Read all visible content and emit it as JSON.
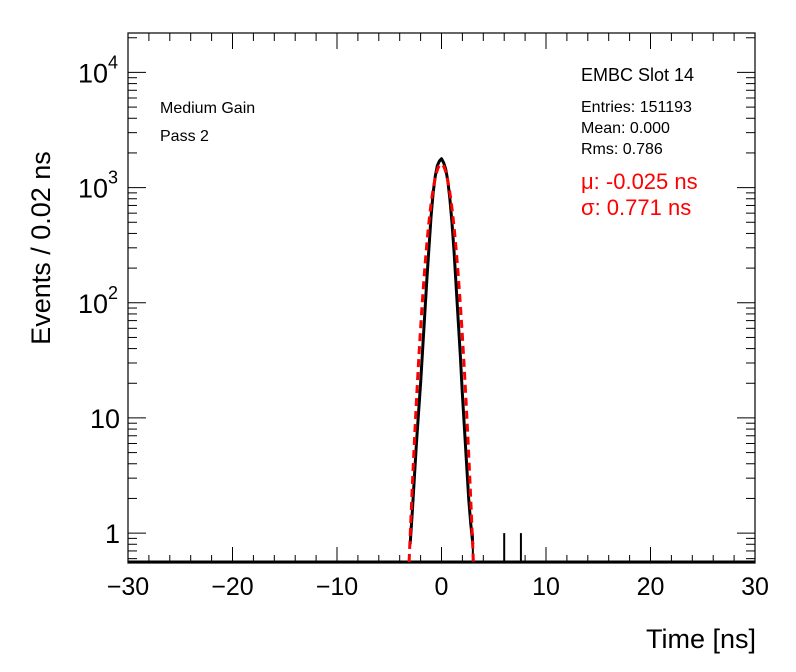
{
  "chart_data": {
    "type": "line",
    "title": "",
    "xlabel": "Time [ns]",
    "ylabel": "Events / 0.02 ns",
    "xlim": [
      -30,
      30
    ],
    "ylim": [
      0.55,
      22000
    ],
    "yscale": "log",
    "grid": false,
    "x_ticks": [
      {
        "value": -30,
        "label": "−30"
      },
      {
        "value": -20,
        "label": "−20"
      },
      {
        "value": -10,
        "label": "−10"
      },
      {
        "value": 0,
        "label": "0"
      },
      {
        "value": 10,
        "label": "10"
      },
      {
        "value": 20,
        "label": "20"
      },
      {
        "value": 30,
        "label": "30"
      }
    ],
    "y_ticks": [
      {
        "value": 1,
        "base": "1",
        "exp": ""
      },
      {
        "value": 10,
        "base": "10",
        "exp": ""
      },
      {
        "value": 100,
        "base": "10",
        "exp": "2"
      },
      {
        "value": 1000,
        "base": "10",
        "exp": "3"
      },
      {
        "value": 10000,
        "base": "10",
        "exp": "4"
      }
    ],
    "series": [
      {
        "kind": "histogram",
        "color": "#000000",
        "x": [
          -3.0,
          -2.8,
          -2.6,
          -2.4,
          -2.2,
          -2.0,
          -1.8,
          -1.6,
          -1.4,
          -1.2,
          -1.0,
          -0.8,
          -0.6,
          -0.4,
          -0.2,
          0.0,
          0.2,
          0.4,
          0.6,
          0.8,
          1.0,
          1.2,
          1.4,
          1.6,
          1.8,
          2.0,
          2.2,
          2.4,
          2.6,
          2.8,
          3.0
        ],
        "y": [
          0.8,
          1.5,
          3,
          6,
          11,
          20,
          40,
          80,
          160,
          300,
          560,
          900,
          1250,
          1550,
          1700,
          1780,
          1650,
          1450,
          1150,
          800,
          500,
          280,
          140,
          70,
          35,
          16,
          8,
          4,
          2,
          1.2,
          0.8
        ],
        "spikes": [
          {
            "x": 3.0,
            "y": 1
          },
          {
            "x": 6.0,
            "y": 1
          },
          {
            "x": 7.6,
            "y": 1
          }
        ]
      },
      {
        "kind": "gaussian-fit",
        "color": "#ff0000",
        "dashed": true,
        "amplitude": 1600,
        "mean": -0.025,
        "sigma": 0.771
      }
    ],
    "annotations": {
      "labels": [
        "Medium Gain",
        "Pass 2"
      ],
      "stats": {
        "name": "EMBC Slot 14",
        "entries": "Entries: 151193",
        "mean": "Mean: 0.000",
        "rms": "Rms: 0.786"
      },
      "fit": {
        "mu": "μ: -0.025 ns",
        "sigma": "σ: 0.771 ns",
        "color": "#ff0000"
      }
    }
  }
}
